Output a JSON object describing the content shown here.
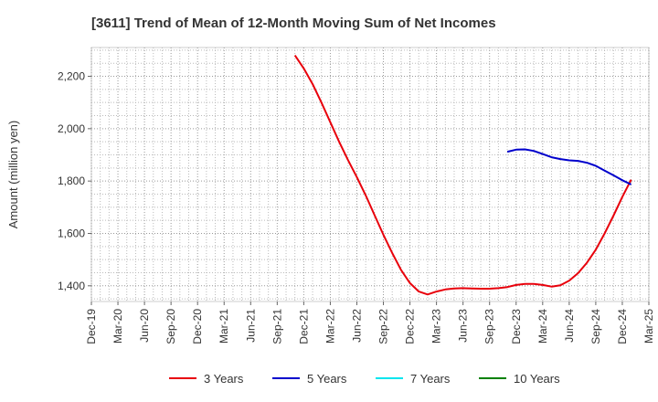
{
  "chart_data": {
    "type": "line",
    "title": "[3611]  Trend of Mean of 12-Month Moving Sum of Net Incomes",
    "xlabel": "",
    "ylabel": "Amount (million yen)",
    "ylim": [
      1340,
      2310
    ],
    "yticks": [
      1400,
      1600,
      1800,
      2000,
      2200
    ],
    "ytick_labels": [
      "1,400",
      "1,600",
      "1,800",
      "2,000",
      "2,200"
    ],
    "x_ticks": [
      "Dec-19",
      "Mar-20",
      "Jun-20",
      "Sep-20",
      "Dec-20",
      "Mar-21",
      "Jun-21",
      "Sep-21",
      "Dec-21",
      "Mar-22",
      "Jun-22",
      "Sep-22",
      "Dec-22",
      "Mar-23",
      "Jun-23",
      "Sep-23",
      "Dec-23",
      "Mar-24",
      "Jun-24",
      "Sep-24",
      "Dec-24",
      "Mar-25"
    ],
    "grid": true,
    "legend_position": "bottom",
    "series": [
      {
        "name": "3 Years",
        "color": "#e8000b",
        "points": [
          [
            "Nov-21",
            2280
          ],
          [
            "Dec-21",
            2230
          ],
          [
            "Jan-22",
            2170
          ],
          [
            "Feb-22",
            2100
          ],
          [
            "Mar-22",
            2025
          ],
          [
            "Apr-22",
            1950
          ],
          [
            "May-22",
            1880
          ],
          [
            "Jun-22",
            1815
          ],
          [
            "Jul-22",
            1745
          ],
          [
            "Aug-22",
            1670
          ],
          [
            "Sep-22",
            1595
          ],
          [
            "Oct-22",
            1525
          ],
          [
            "Nov-22",
            1460
          ],
          [
            "Dec-22",
            1410
          ],
          [
            "Jan-23",
            1378
          ],
          [
            "Feb-23",
            1367
          ],
          [
            "Mar-23",
            1378
          ],
          [
            "Apr-23",
            1386
          ],
          [
            "May-23",
            1390
          ],
          [
            "Jun-23",
            1391
          ],
          [
            "Jul-23",
            1390
          ],
          [
            "Aug-23",
            1389
          ],
          [
            "Sep-23",
            1389
          ],
          [
            "Oct-23",
            1391
          ],
          [
            "Nov-23",
            1395
          ],
          [
            "Dec-23",
            1403
          ],
          [
            "Jan-24",
            1407
          ],
          [
            "Feb-24",
            1407
          ],
          [
            "Mar-24",
            1403
          ],
          [
            "Apr-24",
            1397
          ],
          [
            "May-24",
            1402
          ],
          [
            "Jun-24",
            1420
          ],
          [
            "Jul-24",
            1448
          ],
          [
            "Aug-24",
            1488
          ],
          [
            "Sep-24",
            1538
          ],
          [
            "Oct-24",
            1600
          ],
          [
            "Nov-24",
            1668
          ],
          [
            "Dec-24",
            1740
          ],
          [
            "Jan-25",
            1805
          ]
        ]
      },
      {
        "name": "5 Years",
        "color": "#0000cc",
        "points": [
          [
            "Nov-23",
            1912
          ],
          [
            "Dec-23",
            1920
          ],
          [
            "Jan-24",
            1921
          ],
          [
            "Feb-24",
            1915
          ],
          [
            "Mar-24",
            1903
          ],
          [
            "Apr-24",
            1891
          ],
          [
            "May-24",
            1884
          ],
          [
            "Jun-24",
            1879
          ],
          [
            "Jul-24",
            1877
          ],
          [
            "Aug-24",
            1870
          ],
          [
            "Sep-24",
            1858
          ],
          [
            "Oct-24",
            1840
          ],
          [
            "Nov-24",
            1822
          ],
          [
            "Dec-24",
            1803
          ],
          [
            "Jan-25",
            1787
          ]
        ]
      },
      {
        "name": "7 Years",
        "color": "#00e5ee",
        "points": []
      },
      {
        "name": "10 Years",
        "color": "#008000",
        "points": []
      }
    ]
  }
}
